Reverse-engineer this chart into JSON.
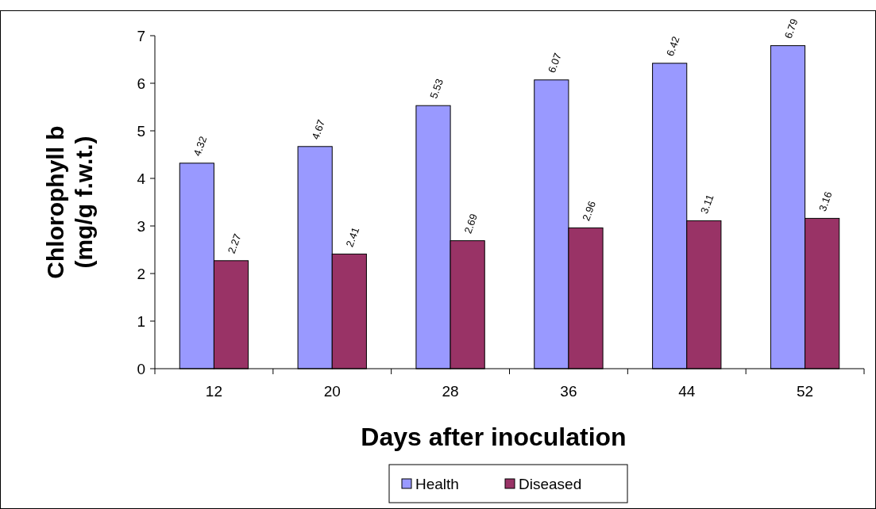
{
  "chart_data": {
    "type": "bar",
    "xlabel": "Days after inoculation",
    "ylabel": "Chlorophyll b\n(mg/g f.w.t.)",
    "categories": [
      "12",
      "20",
      "28",
      "36",
      "44",
      "52"
    ],
    "series": [
      {
        "name": "Health",
        "color": "#9999ff",
        "values": [
          4.32,
          4.67,
          5.53,
          6.07,
          6.42,
          6.79
        ]
      },
      {
        "name": "Diseased",
        "color": "#993366",
        "values": [
          2.27,
          2.41,
          2.69,
          2.96,
          3.11,
          3.16
        ]
      }
    ],
    "ylim": [
      0,
      7
    ],
    "yticks": [
      0,
      1,
      2,
      3,
      4,
      5,
      6,
      7
    ],
    "grid": false,
    "legend": "bottom",
    "data_labels": true
  }
}
